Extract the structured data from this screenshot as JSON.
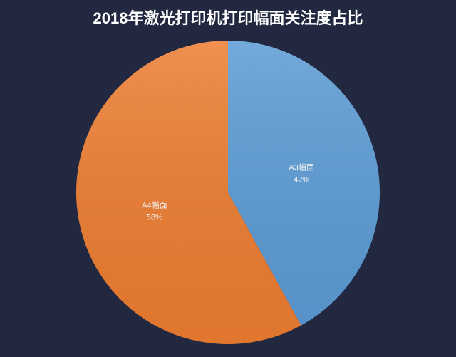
{
  "chart_data": {
    "type": "pie",
    "title": "2018年激光打印机打印幅面关注度占比",
    "categories": [
      "A3幅面",
      "A4幅面"
    ],
    "values": [
      42,
      58
    ],
    "value_labels": [
      "42%",
      "58%"
    ],
    "colors": [
      "#5b9bd5",
      "#ed7d31"
    ]
  }
}
